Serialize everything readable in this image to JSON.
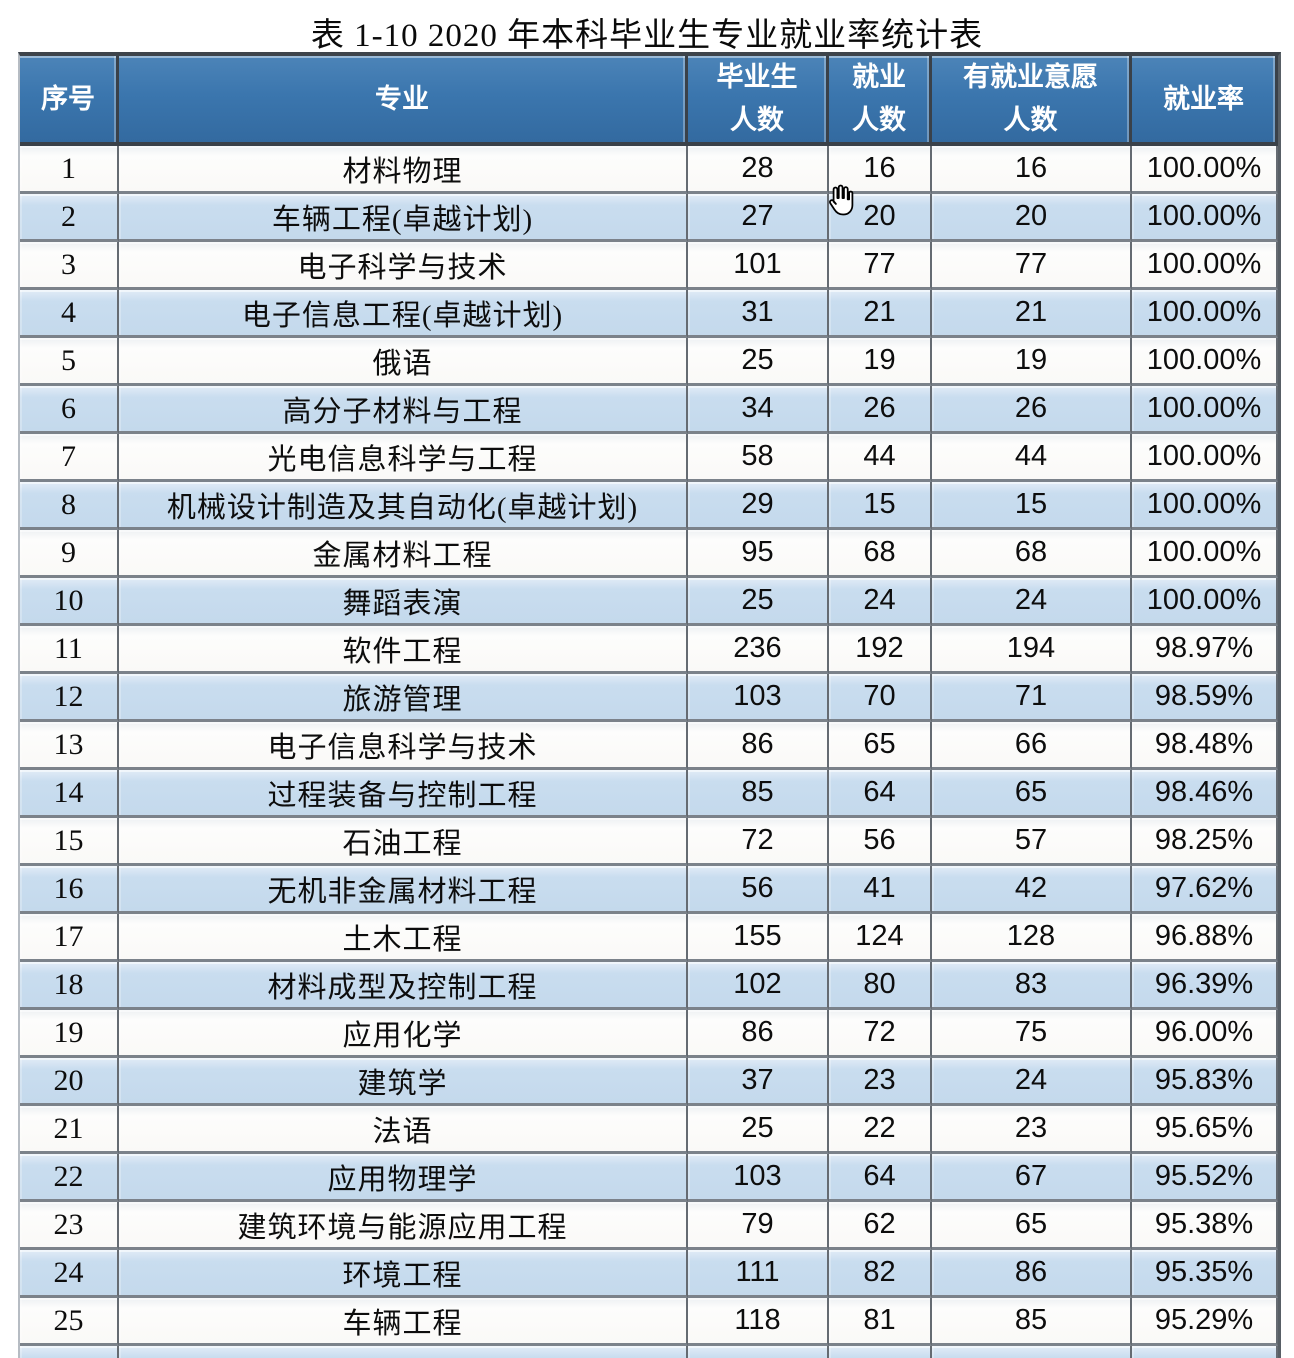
{
  "title": "表 1-10 2020 年本科毕业生专业就业率统计表",
  "colors": {
    "header_bg": "#3b76ae",
    "header_text": "#ffffff",
    "row_stripe_blue": "#c8dcee",
    "row_plain_white": "#fbfbfa",
    "grid_line": "#7b828a",
    "title_text": "#0a0a0a"
  },
  "cursor": {
    "icon": "open-hand-cursor"
  },
  "table": {
    "headers": [
      {
        "line1": "序号",
        "line2": ""
      },
      {
        "line1": "专业",
        "line2": ""
      },
      {
        "line1": "毕业生",
        "line2": "人数"
      },
      {
        "line1": "就业",
        "line2": "人数"
      },
      {
        "line1": "有就业意愿",
        "line2": "人数"
      },
      {
        "line1": "就业率",
        "line2": ""
      }
    ],
    "rows": [
      {
        "no": "1",
        "major": "材料物理",
        "graduates": "28",
        "employed": "16",
        "willing": "16",
        "rate": "100.00%"
      },
      {
        "no": "2",
        "major": "车辆工程(卓越计划)",
        "graduates": "27",
        "employed": "20",
        "willing": "20",
        "rate": "100.00%"
      },
      {
        "no": "3",
        "major": "电子科学与技术",
        "graduates": "101",
        "employed": "77",
        "willing": "77",
        "rate": "100.00%"
      },
      {
        "no": "4",
        "major": "电子信息工程(卓越计划)",
        "graduates": "31",
        "employed": "21",
        "willing": "21",
        "rate": "100.00%"
      },
      {
        "no": "5",
        "major": "俄语",
        "graduates": "25",
        "employed": "19",
        "willing": "19",
        "rate": "100.00%"
      },
      {
        "no": "6",
        "major": "高分子材料与工程",
        "graduates": "34",
        "employed": "26",
        "willing": "26",
        "rate": "100.00%"
      },
      {
        "no": "7",
        "major": "光电信息科学与工程",
        "graduates": "58",
        "employed": "44",
        "willing": "44",
        "rate": "100.00%"
      },
      {
        "no": "8",
        "major": "机械设计制造及其自动化(卓越计划)",
        "graduates": "29",
        "employed": "15",
        "willing": "15",
        "rate": "100.00%"
      },
      {
        "no": "9",
        "major": "金属材料工程",
        "graduates": "95",
        "employed": "68",
        "willing": "68",
        "rate": "100.00%"
      },
      {
        "no": "10",
        "major": "舞蹈表演",
        "graduates": "25",
        "employed": "24",
        "willing": "24",
        "rate": "100.00%"
      },
      {
        "no": "11",
        "major": "软件工程",
        "graduates": "236",
        "employed": "192",
        "willing": "194",
        "rate": "98.97%"
      },
      {
        "no": "12",
        "major": "旅游管理",
        "graduates": "103",
        "employed": "70",
        "willing": "71",
        "rate": "98.59%"
      },
      {
        "no": "13",
        "major": "电子信息科学与技术",
        "graduates": "86",
        "employed": "65",
        "willing": "66",
        "rate": "98.48%"
      },
      {
        "no": "14",
        "major": "过程装备与控制工程",
        "graduates": "85",
        "employed": "64",
        "willing": "65",
        "rate": "98.46%"
      },
      {
        "no": "15",
        "major": "石油工程",
        "graduates": "72",
        "employed": "56",
        "willing": "57",
        "rate": "98.25%"
      },
      {
        "no": "16",
        "major": "无机非金属材料工程",
        "graduates": "56",
        "employed": "41",
        "willing": "42",
        "rate": "97.62%"
      },
      {
        "no": "17",
        "major": "土木工程",
        "graduates": "155",
        "employed": "124",
        "willing": "128",
        "rate": "96.88%"
      },
      {
        "no": "18",
        "major": "材料成型及控制工程",
        "graduates": "102",
        "employed": "80",
        "willing": "83",
        "rate": "96.39%"
      },
      {
        "no": "19",
        "major": "应用化学",
        "graduates": "86",
        "employed": "72",
        "willing": "75",
        "rate": "96.00%"
      },
      {
        "no": "20",
        "major": "建筑学",
        "graduates": "37",
        "employed": "23",
        "willing": "24",
        "rate": "95.83%"
      },
      {
        "no": "21",
        "major": "法语",
        "graduates": "25",
        "employed": "22",
        "willing": "23",
        "rate": "95.65%"
      },
      {
        "no": "22",
        "major": "应用物理学",
        "graduates": "103",
        "employed": "64",
        "willing": "67",
        "rate": "95.52%"
      },
      {
        "no": "23",
        "major": "建筑环境与能源应用工程",
        "graduates": "79",
        "employed": "62",
        "willing": "65",
        "rate": "95.38%"
      },
      {
        "no": "24",
        "major": "环境工程",
        "graduates": "111",
        "employed": "82",
        "willing": "86",
        "rate": "95.35%"
      },
      {
        "no": "25",
        "major": "车辆工程",
        "graduates": "118",
        "employed": "81",
        "willing": "85",
        "rate": "95.29%"
      }
    ]
  }
}
